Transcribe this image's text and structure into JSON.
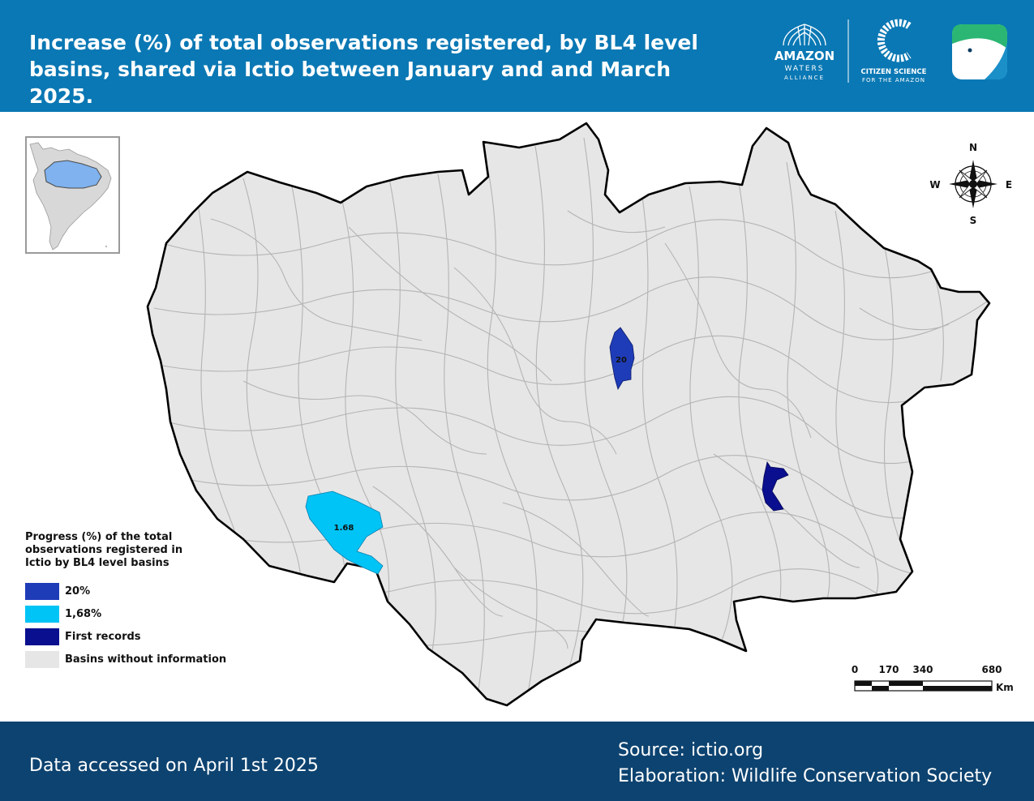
{
  "header": {
    "title": "Increase (%) of total observations registered, by BL4 level basins, shared via Ictio between January and and March 2025.",
    "logo_amazon_line1": "AMAZON",
    "logo_amazon_line2": "WATERS",
    "logo_amazon_line3": "ALLIANCE",
    "logo_citizen_line1": "CITIZEN SCIENCE",
    "logo_citizen_line2": "FOR THE AMAZON",
    "colors": {
      "band": "#0a78b4",
      "app_icon": "#2bb673"
    }
  },
  "map": {
    "basin_fill": "#e6e6e6",
    "basin_stroke": "#b4b4b4",
    "boundary_stroke": "#000000",
    "labels": {
      "north_basin": "20",
      "southwest_basin": "1.68"
    },
    "colors": {
      "pct20": "#1f3cb8",
      "pct168": "#00c4f5",
      "first": "#0a0f8f"
    }
  },
  "compass": {
    "n": "N",
    "s": "S",
    "e": "E",
    "w": "W"
  },
  "legend": {
    "title": "Progress (%) of the total observations registered in Ictio by BL4 level basins",
    "items": [
      {
        "label": "20%",
        "color": "#1f3cb8"
      },
      {
        "label": "1,68%",
        "color": "#00c4f5"
      },
      {
        "label": "First records",
        "color": "#0a0f8f"
      },
      {
        "label": "Basins without information",
        "color": "#e6e6e6"
      }
    ]
  },
  "scale": {
    "ticks": [
      "0",
      "170",
      "340",
      "680"
    ],
    "unit": "Km"
  },
  "footer": {
    "accessed": "Data accessed on April 1st 2025",
    "source": "Source: ictio.org",
    "elaboration": "Elaboration: Wildlife Conservation Society",
    "color": "#0d4370"
  }
}
